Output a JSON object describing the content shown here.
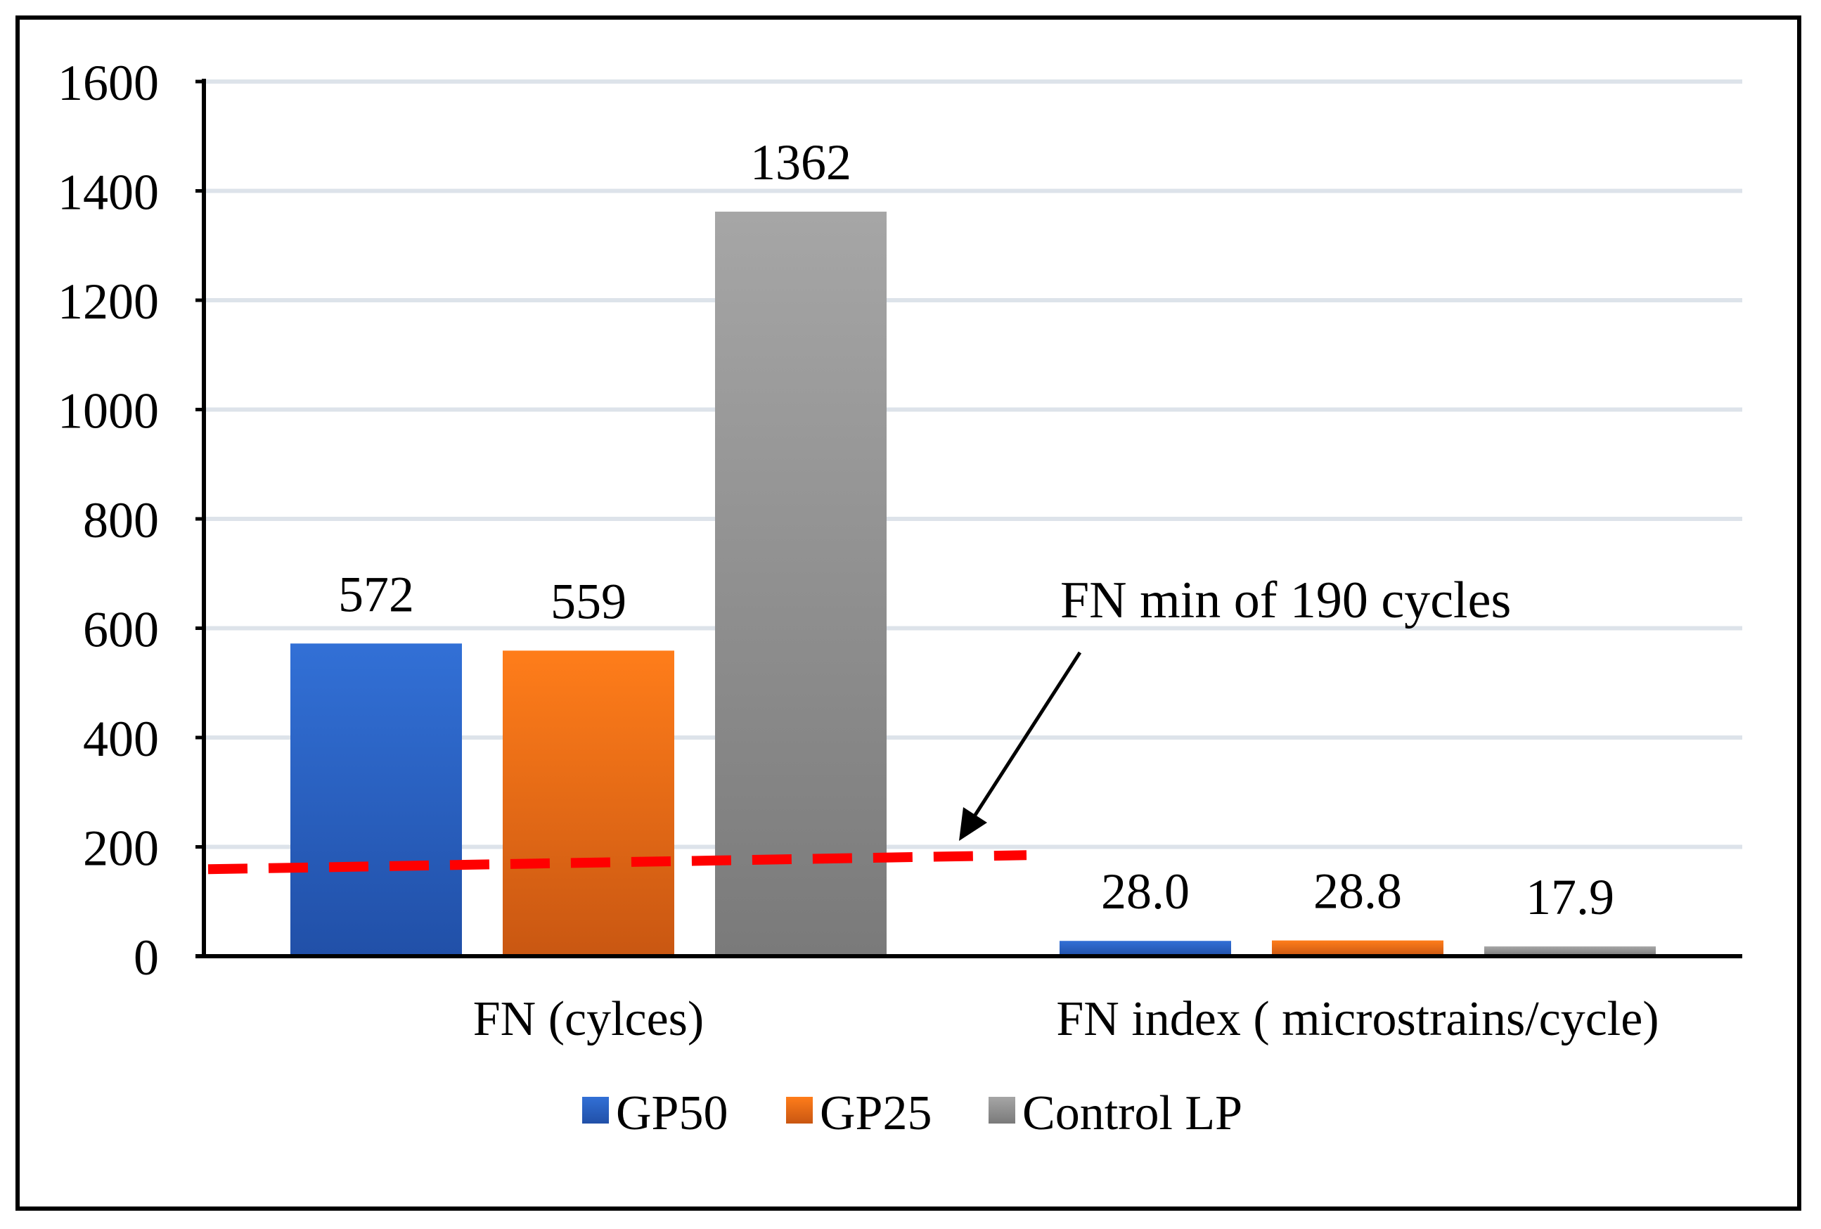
{
  "chart_data": {
    "type": "bar",
    "title": "",
    "xlabel": "",
    "ylabel": "",
    "ylim": [
      0,
      1600
    ],
    "yticks": [
      0,
      200,
      400,
      600,
      800,
      1000,
      1200,
      1400,
      1600
    ],
    "ytick_labels": [
      "0",
      "200",
      "400",
      "600",
      "800",
      "1000",
      "1200",
      "1400",
      "1600"
    ],
    "grid": true,
    "legend_position": "bottom",
    "categories": [
      "FN (cylces)",
      "FN index ( microstrains/cycle)"
    ],
    "series": [
      {
        "name": "GP50",
        "values": [
          572,
          28.0
        ],
        "labels": [
          "572",
          "28.0"
        ],
        "color": "#2e66cc"
      },
      {
        "name": "GP25",
        "values": [
          559,
          28.8
        ],
        "labels": [
          "559",
          "28.8"
        ],
        "color": "#f57a1a"
      },
      {
        "name": "Control LP",
        "values": [
          1362,
          17.9
        ],
        "labels": [
          "1362",
          "17.9"
        ],
        "color": "#969696"
      }
    ],
    "reference_line": {
      "label": "FN min of 190 cycles",
      "value": 190,
      "color": "#ff0000",
      "style": "dashed"
    }
  }
}
